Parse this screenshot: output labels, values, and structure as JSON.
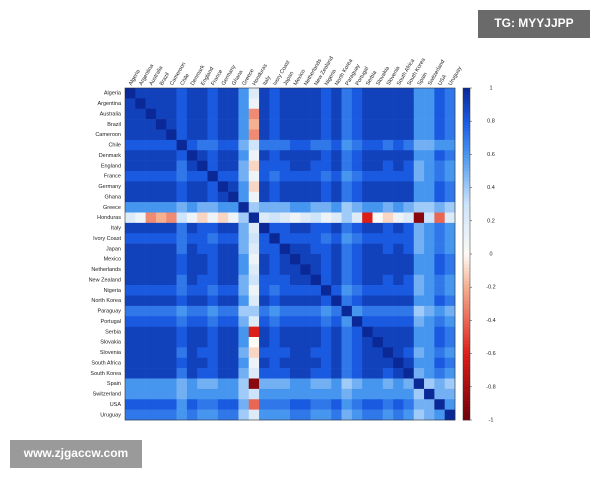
{
  "chart_data": {
    "type": "heatmap",
    "categories": [
      "Algeria",
      "Argentina",
      "Australia",
      "Brazil",
      "Cameroon",
      "Chile",
      "Denmark",
      "England",
      "France",
      "Germany",
      "Ghana",
      "Greece",
      "Honduras",
      "Italy",
      "Ivory Coast",
      "Japan",
      "Mexico",
      "Netherlands",
      "New Zealand",
      "Nigeria",
      "North Korea",
      "Paraguay",
      "Portugal",
      "Serbia",
      "Slovakia",
      "Slovenia",
      "South Africa",
      "South Korea",
      "Spain",
      "Switzerland",
      "USA",
      "Uruguay"
    ],
    "values": [
      [
        1,
        0.9,
        0.9,
        0.9,
        0.9,
        0.8,
        0.9,
        0.9,
        0.8,
        0.9,
        0.9,
        0.6,
        0.2,
        0.9,
        0.8,
        0.9,
        0.9,
        0.9,
        0.9,
        0.8,
        0.9,
        0.7,
        0.8,
        0.9,
        0.9,
        0.9,
        0.9,
        0.9,
        0.6,
        0.6,
        0.8,
        0.7
      ],
      [
        0.9,
        1,
        0.9,
        0.9,
        0.9,
        0.8,
        0.9,
        0.9,
        0.8,
        0.9,
        0.9,
        0.6,
        0.1,
        0.9,
        0.8,
        0.9,
        0.9,
        0.9,
        0.9,
        0.8,
        0.9,
        0.7,
        0.8,
        0.9,
        0.9,
        0.9,
        0.9,
        0.9,
        0.6,
        0.6,
        0.8,
        0.7
      ],
      [
        0.9,
        0.9,
        1,
        0.9,
        0.9,
        0.8,
        0.9,
        0.9,
        0.8,
        0.9,
        0.9,
        0.6,
        -0.3,
        0.9,
        0.8,
        0.9,
        0.9,
        0.9,
        0.9,
        0.8,
        0.9,
        0.7,
        0.8,
        0.9,
        0.9,
        0.9,
        0.9,
        0.9,
        0.6,
        0.6,
        0.8,
        0.7
      ],
      [
        0.9,
        0.9,
        0.9,
        1,
        0.9,
        0.8,
        0.9,
        0.9,
        0.8,
        0.9,
        0.9,
        0.6,
        -0.2,
        0.9,
        0.8,
        0.9,
        0.9,
        0.9,
        0.9,
        0.8,
        0.9,
        0.7,
        0.8,
        0.9,
        0.9,
        0.9,
        0.9,
        0.9,
        0.6,
        0.6,
        0.8,
        0.7
      ],
      [
        0.9,
        0.9,
        0.9,
        0.9,
        1,
        0.8,
        0.9,
        0.9,
        0.8,
        0.9,
        0.9,
        0.6,
        -0.3,
        0.9,
        0.8,
        0.9,
        0.9,
        0.9,
        0.9,
        0.8,
        0.9,
        0.7,
        0.8,
        0.9,
        0.9,
        0.9,
        0.9,
        0.9,
        0.6,
        0.6,
        0.8,
        0.7
      ],
      [
        0.8,
        0.8,
        0.8,
        0.8,
        0.8,
        1,
        0.8,
        0.7,
        0.7,
        0.8,
        0.8,
        0.5,
        0.3,
        0.7,
        0.7,
        0.7,
        0.8,
        0.8,
        0.7,
        0.7,
        0.8,
        0.6,
        0.7,
        0.8,
        0.8,
        0.7,
        0.8,
        0.7,
        0.5,
        0.5,
        0.6,
        0.6
      ],
      [
        0.9,
        0.9,
        0.9,
        0.9,
        0.9,
        0.8,
        1,
        0.9,
        0.8,
        0.9,
        0.9,
        0.6,
        0.1,
        0.9,
        0.8,
        0.9,
        0.9,
        0.9,
        0.9,
        0.8,
        0.9,
        0.7,
        0.8,
        0.9,
        0.9,
        0.9,
        0.9,
        0.9,
        0.6,
        0.6,
        0.8,
        0.7
      ],
      [
        0.9,
        0.9,
        0.9,
        0.9,
        0.9,
        0.7,
        0.9,
        1,
        0.8,
        0.9,
        0.9,
        0.5,
        -0.1,
        0.8,
        0.8,
        0.8,
        0.9,
        0.9,
        0.8,
        0.8,
        0.9,
        0.7,
        0.8,
        0.9,
        0.9,
        0.8,
        0.9,
        0.8,
        0.5,
        0.6,
        0.7,
        0.6
      ],
      [
        0.8,
        0.8,
        0.8,
        0.8,
        0.8,
        0.7,
        0.8,
        0.8,
        1,
        0.8,
        0.8,
        0.5,
        0.1,
        0.8,
        0.7,
        0.8,
        0.8,
        0.8,
        0.8,
        0.7,
        0.8,
        0.6,
        0.7,
        0.8,
        0.8,
        0.8,
        0.8,
        0.8,
        0.5,
        0.6,
        0.7,
        0.6
      ],
      [
        0.9,
        0.9,
        0.9,
        0.9,
        0.9,
        0.8,
        0.9,
        0.9,
        0.8,
        1,
        0.9,
        0.6,
        -0.1,
        0.9,
        0.8,
        0.9,
        0.9,
        0.9,
        0.9,
        0.8,
        0.9,
        0.7,
        0.8,
        0.9,
        0.9,
        0.9,
        0.9,
        0.9,
        0.6,
        0.6,
        0.8,
        0.7
      ],
      [
        0.9,
        0.9,
        0.9,
        0.9,
        0.9,
        0.8,
        0.9,
        0.9,
        0.8,
        0.9,
        1,
        0.6,
        0.1,
        0.9,
        0.8,
        0.9,
        0.9,
        0.9,
        0.9,
        0.8,
        0.9,
        0.7,
        0.8,
        0.9,
        0.9,
        0.9,
        0.9,
        0.9,
        0.6,
        0.6,
        0.8,
        0.7
      ],
      [
        0.6,
        0.6,
        0.6,
        0.6,
        0.6,
        0.5,
        0.6,
        0.5,
        0.5,
        0.6,
        0.6,
        1,
        0.4,
        0.5,
        0.5,
        0.5,
        0.6,
        0.6,
        0.5,
        0.5,
        0.6,
        0.4,
        0.5,
        0.6,
        0.6,
        0.5,
        0.6,
        0.5,
        0.4,
        0.4,
        0.5,
        0.4
      ],
      [
        0.2,
        0.1,
        -0.3,
        -0.2,
        -0.3,
        0.3,
        0.1,
        -0.1,
        0.1,
        -0.1,
        0.1,
        0.4,
        1,
        0.2,
        0.3,
        0.2,
        0.1,
        0.2,
        0.3,
        0.1,
        0.2,
        0.4,
        0.2,
        -0.6,
        0,
        -0.1,
        0.1,
        0.2,
        -0.9,
        0.3,
        -0.4,
        0.2
      ],
      [
        0.9,
        0.9,
        0.9,
        0.9,
        0.9,
        0.7,
        0.9,
        0.8,
        0.8,
        0.9,
        0.9,
        0.5,
        0.2,
        1,
        0.8,
        0.8,
        0.9,
        0.9,
        0.8,
        0.8,
        0.9,
        0.7,
        0.8,
        0.9,
        0.9,
        0.8,
        0.9,
        0.8,
        0.5,
        0.6,
        0.7,
        0.6
      ],
      [
        0.8,
        0.8,
        0.8,
        0.8,
        0.8,
        0.7,
        0.8,
        0.8,
        0.7,
        0.8,
        0.8,
        0.5,
        0.3,
        0.8,
        1,
        0.8,
        0.8,
        0.8,
        0.8,
        0.7,
        0.8,
        0.6,
        0.7,
        0.8,
        0.8,
        0.8,
        0.8,
        0.8,
        0.5,
        0.6,
        0.7,
        0.6
      ],
      [
        0.9,
        0.9,
        0.9,
        0.9,
        0.9,
        0.7,
        0.9,
        0.8,
        0.8,
        0.9,
        0.9,
        0.5,
        0.2,
        0.8,
        0.8,
        1,
        0.9,
        0.9,
        0.8,
        0.8,
        0.9,
        0.7,
        0.8,
        0.9,
        0.9,
        0.8,
        0.9,
        0.8,
        0.5,
        0.6,
        0.7,
        0.6
      ],
      [
        0.9,
        0.9,
        0.9,
        0.9,
        0.9,
        0.8,
        0.9,
        0.9,
        0.8,
        0.9,
        0.9,
        0.6,
        0.1,
        0.9,
        0.8,
        0.9,
        1,
        0.9,
        0.9,
        0.8,
        0.9,
        0.7,
        0.8,
        0.9,
        0.9,
        0.9,
        0.9,
        0.9,
        0.6,
        0.6,
        0.8,
        0.7
      ],
      [
        0.9,
        0.9,
        0.9,
        0.9,
        0.9,
        0.8,
        0.9,
        0.9,
        0.8,
        0.9,
        0.9,
        0.6,
        0.2,
        0.9,
        0.8,
        0.9,
        0.9,
        1,
        0.9,
        0.8,
        0.9,
        0.7,
        0.8,
        0.9,
        0.9,
        0.9,
        0.9,
        0.9,
        0.6,
        0.6,
        0.8,
        0.7
      ],
      [
        0.9,
        0.9,
        0.9,
        0.9,
        0.9,
        0.7,
        0.9,
        0.8,
        0.8,
        0.9,
        0.9,
        0.5,
        0.3,
        0.8,
        0.8,
        0.8,
        0.9,
        0.9,
        1,
        0.8,
        0.9,
        0.7,
        0.8,
        0.9,
        0.9,
        0.8,
        0.9,
        0.8,
        0.5,
        0.6,
        0.7,
        0.6
      ],
      [
        0.8,
        0.8,
        0.8,
        0.8,
        0.8,
        0.7,
        0.8,
        0.8,
        0.7,
        0.8,
        0.8,
        0.5,
        0.1,
        0.8,
        0.7,
        0.8,
        0.8,
        0.8,
        0.8,
        1,
        0.8,
        0.6,
        0.7,
        0.8,
        0.8,
        0.8,
        0.8,
        0.8,
        0.5,
        0.6,
        0.7,
        0.6
      ],
      [
        0.9,
        0.9,
        0.9,
        0.9,
        0.9,
        0.8,
        0.9,
        0.9,
        0.8,
        0.9,
        0.9,
        0.6,
        0.2,
        0.9,
        0.8,
        0.9,
        0.9,
        0.9,
        0.9,
        0.8,
        1,
        0.7,
        0.8,
        0.9,
        0.9,
        0.9,
        0.9,
        0.9,
        0.6,
        0.6,
        0.8,
        0.7
      ],
      [
        0.7,
        0.7,
        0.7,
        0.7,
        0.7,
        0.6,
        0.7,
        0.7,
        0.6,
        0.7,
        0.7,
        0.4,
        0.4,
        0.7,
        0.6,
        0.7,
        0.7,
        0.7,
        0.7,
        0.6,
        0.7,
        1,
        0.6,
        0.7,
        0.7,
        0.7,
        0.7,
        0.7,
        0.4,
        0.5,
        0.6,
        0.5
      ],
      [
        0.8,
        0.8,
        0.8,
        0.8,
        0.8,
        0.7,
        0.8,
        0.8,
        0.7,
        0.8,
        0.8,
        0.5,
        0.2,
        0.8,
        0.7,
        0.8,
        0.8,
        0.8,
        0.8,
        0.7,
        0.8,
        0.6,
        1,
        0.8,
        0.8,
        0.8,
        0.8,
        0.8,
        0.5,
        0.6,
        0.7,
        0.6
      ],
      [
        0.9,
        0.9,
        0.9,
        0.9,
        0.9,
        0.8,
        0.9,
        0.9,
        0.8,
        0.9,
        0.9,
        0.6,
        -0.6,
        0.9,
        0.8,
        0.9,
        0.9,
        0.9,
        0.9,
        0.8,
        0.9,
        0.7,
        0.8,
        1,
        0.9,
        0.9,
        0.9,
        0.9,
        0.6,
        0.6,
        0.8,
        0.7
      ],
      [
        0.9,
        0.9,
        0.9,
        0.9,
        0.9,
        0.8,
        0.9,
        0.9,
        0.8,
        0.9,
        0.9,
        0.6,
        0,
        0.9,
        0.8,
        0.9,
        0.9,
        0.9,
        0.9,
        0.8,
        0.9,
        0.7,
        0.8,
        0.9,
        1,
        0.9,
        0.9,
        0.9,
        0.6,
        0.6,
        0.8,
        0.7
      ],
      [
        0.9,
        0.9,
        0.9,
        0.9,
        0.9,
        0.7,
        0.9,
        0.8,
        0.8,
        0.9,
        0.9,
        0.5,
        -0.1,
        0.8,
        0.8,
        0.8,
        0.9,
        0.9,
        0.8,
        0.8,
        0.9,
        0.7,
        0.8,
        0.9,
        0.9,
        1,
        0.9,
        0.8,
        0.5,
        0.6,
        0.7,
        0.6
      ],
      [
        0.9,
        0.9,
        0.9,
        0.9,
        0.9,
        0.8,
        0.9,
        0.9,
        0.8,
        0.9,
        0.9,
        0.6,
        0.1,
        0.9,
        0.8,
        0.9,
        0.9,
        0.9,
        0.9,
        0.8,
        0.9,
        0.7,
        0.8,
        0.9,
        0.9,
        0.9,
        1,
        0.9,
        0.6,
        0.6,
        0.8,
        0.7
      ],
      [
        0.9,
        0.9,
        0.9,
        0.9,
        0.9,
        0.7,
        0.9,
        0.8,
        0.8,
        0.9,
        0.9,
        0.5,
        0.2,
        0.8,
        0.8,
        0.8,
        0.9,
        0.9,
        0.8,
        0.8,
        0.9,
        0.7,
        0.8,
        0.9,
        0.9,
        0.8,
        0.9,
        1,
        0.5,
        0.6,
        0.7,
        0.6
      ],
      [
        0.6,
        0.6,
        0.6,
        0.6,
        0.6,
        0.5,
        0.6,
        0.5,
        0.5,
        0.6,
        0.6,
        0.4,
        -0.9,
        0.5,
        0.5,
        0.5,
        0.6,
        0.6,
        0.5,
        0.5,
        0.6,
        0.4,
        0.5,
        0.6,
        0.6,
        0.5,
        0.6,
        0.5,
        1,
        0.4,
        0.5,
        0.4
      ],
      [
        0.6,
        0.6,
        0.6,
        0.6,
        0.6,
        0.5,
        0.6,
        0.6,
        0.6,
        0.6,
        0.6,
        0.4,
        0.3,
        0.6,
        0.6,
        0.6,
        0.6,
        0.6,
        0.6,
        0.6,
        0.6,
        0.5,
        0.6,
        0.6,
        0.6,
        0.6,
        0.6,
        0.6,
        0.4,
        1,
        0.5,
        0.5
      ],
      [
        0.8,
        0.8,
        0.8,
        0.8,
        0.8,
        0.6,
        0.8,
        0.7,
        0.7,
        0.8,
        0.8,
        0.5,
        -0.4,
        0.7,
        0.7,
        0.7,
        0.8,
        0.8,
        0.7,
        0.7,
        0.8,
        0.6,
        0.7,
        0.8,
        0.8,
        0.7,
        0.8,
        0.7,
        0.5,
        0.5,
        1,
        0.6
      ],
      [
        0.7,
        0.7,
        0.7,
        0.7,
        0.7,
        0.6,
        0.7,
        0.6,
        0.6,
        0.7,
        0.7,
        0.4,
        0.2,
        0.6,
        0.6,
        0.6,
        0.7,
        0.7,
        0.6,
        0.6,
        0.7,
        0.5,
        0.6,
        0.7,
        0.7,
        0.6,
        0.7,
        0.6,
        0.4,
        0.5,
        0.6,
        1
      ]
    ],
    "clim": [
      -1,
      1
    ],
    "cticks": [
      1,
      0.8,
      0.6,
      0.4,
      0.2,
      0,
      -0.2,
      -0.4,
      -0.6,
      -0.8,
      -1
    ]
  },
  "watermarks": [
    "TG: MYYJJPP",
    "www.zjgaccw.com"
  ]
}
